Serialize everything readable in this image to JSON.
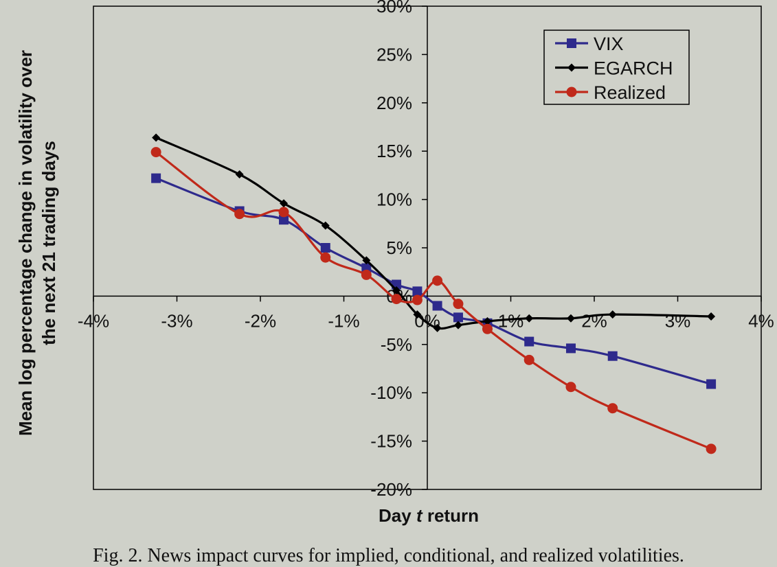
{
  "caption": "Fig. 2.  News impact curves for implied, conditional, and realized volatilities.",
  "chart_data": {
    "type": "line",
    "title": "",
    "xlabel_prefix": "Day ",
    "xlabel_var": "t",
    "xlabel_suffix": " return",
    "ylabel_line1": "Mean log percentage change in volatility over",
    "ylabel_line2": "the next 21 trading days",
    "xlim": [
      -4,
      4
    ],
    "ylim": [
      -20,
      30
    ],
    "xticks": [
      -4,
      -3,
      -2,
      -1,
      0,
      1,
      2,
      3,
      4
    ],
    "xtick_labels": [
      "-4%",
      "-3%",
      "-2%",
      "-1%",
      "0%",
      "1%",
      "2%",
      "3%",
      "4%"
    ],
    "yticks": [
      -20,
      -15,
      -10,
      -5,
      0,
      5,
      10,
      15,
      20,
      25,
      30
    ],
    "ytick_labels": [
      "-20%",
      "-15%",
      "-10%",
      "-5%",
      "0%",
      "5%",
      "10%",
      "15%",
      "20%",
      "25%",
      "30%"
    ],
    "grid": false,
    "legend_position": "top-right",
    "series": [
      {
        "name": "VIX",
        "color": "#2e2a8c",
        "marker": "square",
        "x": [
          -3.25,
          -2.25,
          -1.72,
          -1.22,
          -0.73,
          -0.37,
          -0.12,
          0.12,
          0.37,
          0.72,
          1.22,
          1.72,
          2.22,
          3.4
        ],
        "y": [
          12.2,
          8.8,
          7.9,
          5.0,
          2.9,
          1.2,
          0.5,
          -1.0,
          -2.2,
          -2.8,
          -4.7,
          -5.4,
          -6.2,
          -9.1
        ]
      },
      {
        "name": "EGARCH",
        "color": "#000000",
        "marker": "diamond",
        "x": [
          -3.25,
          -2.25,
          -1.72,
          -1.22,
          -0.73,
          -0.37,
          -0.12,
          0.12,
          0.37,
          0.72,
          1.22,
          1.72,
          2.22,
          3.4
        ],
        "y": [
          16.4,
          12.6,
          9.6,
          7.3,
          3.7,
          0.6,
          -1.9,
          -3.3,
          -3.0,
          -2.6,
          -2.3,
          -2.3,
          -1.9,
          -2.1
        ]
      },
      {
        "name": "Realized",
        "color": "#c0291a",
        "marker": "circle",
        "x": [
          -3.25,
          -2.25,
          -1.72,
          -1.22,
          -0.73,
          -0.37,
          -0.12,
          0.12,
          0.37,
          0.72,
          1.22,
          1.72,
          2.22,
          3.4
        ],
        "y": [
          14.9,
          8.5,
          8.7,
          4.0,
          2.2,
          -0.3,
          -0.4,
          1.6,
          -0.8,
          -3.4,
          -6.6,
          -9.4,
          -11.6,
          -15.8
        ]
      }
    ]
  }
}
